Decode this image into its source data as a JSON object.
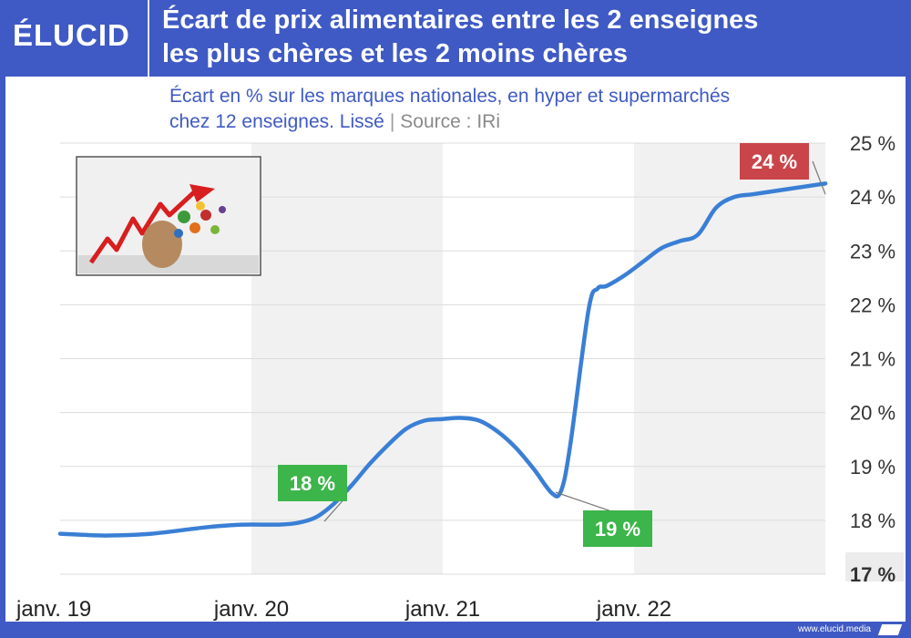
{
  "brand": {
    "logo_text": "ÉLUCID",
    "footer_url": "www.elucid.media"
  },
  "colors": {
    "accent": "#3f5ac4",
    "line": "#3a7fd5",
    "green": "#3cb54a",
    "red": "#c9454a"
  },
  "chart_data": {
    "type": "line",
    "title": "Écart de prix alimentaires entre les 2 enseignes les plus chères et les 2 moins chères",
    "subtitle": "Écart en % sur les marques nationales, en hyper et supermarchés chez 12 enseignes. Lissé",
    "source": "Source : IRi",
    "title_lines": [
      "Écart de prix alimentaires entre les 2 enseignes",
      "les plus chères et les 2 moins chères"
    ],
    "subtitle_line1": "Écart en % sur les marques nationales, en hyper et supermarchés",
    "subtitle_line2": "chez 12 enseignes. Lissé",
    "ylim": [
      17,
      25
    ],
    "y_ticks": [
      {
        "value": 25,
        "label": "25 %"
      },
      {
        "value": 24,
        "label": "24 %"
      },
      {
        "value": 23,
        "label": "23 %"
      },
      {
        "value": 22,
        "label": "22 %"
      },
      {
        "value": 21,
        "label": "21 %"
      },
      {
        "value": 20,
        "label": "20 %"
      },
      {
        "value": 19,
        "label": "19 %"
      },
      {
        "value": 18,
        "label": "18 %"
      },
      {
        "value": 17,
        "label": "17 %"
      }
    ],
    "x_ticks": [
      "janv. 19",
      "janv. 20",
      "janv. 21",
      "janv. 22"
    ],
    "xlim": [
      0,
      42
    ],
    "series": [
      {
        "x": [
          0,
          2,
          3,
          5,
          8,
          10,
          12,
          13,
          14,
          15,
          16,
          17,
          18,
          19,
          20,
          21,
          22,
          23,
          24,
          25,
          26,
          27,
          27.5,
          28,
          29,
          29.5,
          30,
          31,
          32,
          33,
          34,
          35,
          36,
          37,
          38,
          39,
          40,
          41,
          42
        ],
        "values": [
          17.75,
          17.72,
          17.72,
          17.75,
          17.87,
          17.92,
          17.92,
          17.95,
          18.05,
          18.3,
          18.65,
          19.05,
          19.4,
          19.7,
          19.85,
          19.88,
          19.9,
          19.85,
          19.65,
          19.35,
          18.95,
          18.5,
          18.55,
          19.4,
          21.9,
          22.3,
          22.35,
          22.55,
          22.8,
          23.05,
          23.18,
          23.3,
          23.8,
          24.0,
          24.05,
          24.1,
          24.15,
          24.2,
          24.25
        ]
      }
    ],
    "annotations": [
      {
        "label": "18 %",
        "color": "green",
        "x": 14.5,
        "y": 17.98
      },
      {
        "label": "19 %",
        "color": "green",
        "x": 27.2,
        "y": 18.52
      },
      {
        "label": "24 %",
        "color": "red",
        "x": 42,
        "y": 24.05
      }
    ],
    "grid": true,
    "background_bands": true
  }
}
